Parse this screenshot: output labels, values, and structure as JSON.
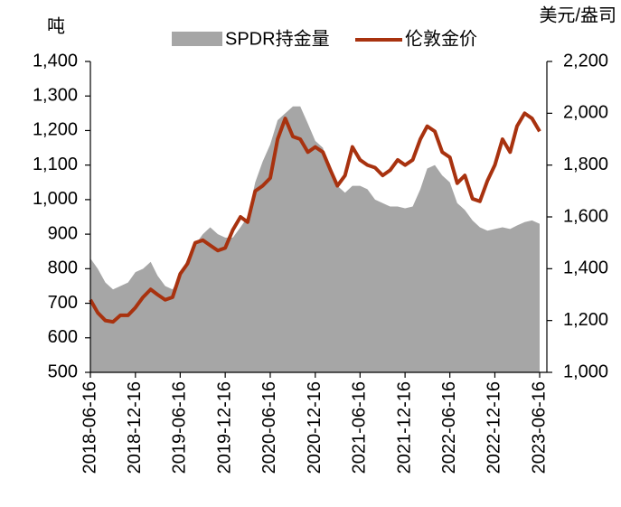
{
  "chart_data": {
    "type": "area_line",
    "y_label": "吨",
    "y2_label": "美元/盎司",
    "x": [
      "2018-06-16",
      "2018-07-16",
      "2018-08-16",
      "2018-09-16",
      "2018-10-16",
      "2018-11-16",
      "2018-12-16",
      "2019-01-16",
      "2019-02-16",
      "2019-03-16",
      "2019-04-16",
      "2019-05-16",
      "2019-06-16",
      "2019-07-16",
      "2019-08-16",
      "2019-09-16",
      "2019-10-16",
      "2019-11-16",
      "2019-12-16",
      "2020-01-16",
      "2020-02-16",
      "2020-03-16",
      "2020-04-16",
      "2020-05-16",
      "2020-06-16",
      "2020-07-16",
      "2020-08-16",
      "2020-09-16",
      "2020-10-16",
      "2020-11-16",
      "2020-12-16",
      "2021-01-16",
      "2021-02-16",
      "2021-03-16",
      "2021-04-16",
      "2021-05-16",
      "2021-06-16",
      "2021-07-16",
      "2021-08-16",
      "2021-09-16",
      "2021-10-16",
      "2021-11-16",
      "2021-12-16",
      "2022-01-16",
      "2022-02-16",
      "2022-03-16",
      "2022-04-16",
      "2022-05-16",
      "2022-06-16",
      "2022-07-16",
      "2022-08-16",
      "2022-09-16",
      "2022-10-16",
      "2022-11-16",
      "2022-12-16",
      "2023-01-16",
      "2023-02-16",
      "2023-03-16",
      "2023-04-16",
      "2023-05-16",
      "2023-06-16"
    ],
    "xlim": [
      "2018-06-16",
      "2023-06-16"
    ],
    "xticks": [
      "2018-06-16",
      "2018-12-16",
      "2019-06-16",
      "2019-12-16",
      "2020-06-16",
      "2020-12-16",
      "2021-06-16",
      "2021-12-16",
      "2022-06-16",
      "2022-12-16",
      "2023-06-16"
    ],
    "series": [
      {
        "name": "SPDR持金量",
        "kind": "area",
        "color": "#a6a6a6",
        "values": [
          830,
          800,
          760,
          740,
          750,
          760,
          790,
          800,
          820,
          780,
          750,
          740,
          780,
          830,
          870,
          900,
          920,
          900,
          890,
          890,
          920,
          950,
          1050,
          1110,
          1160,
          1230,
          1250,
          1270,
          1270,
          1220,
          1170,
          1150,
          1080,
          1040,
          1020,
          1040,
          1040,
          1030,
          1000,
          990,
          980,
          980,
          975,
          980,
          1030,
          1090,
          1100,
          1070,
          1050,
          990,
          970,
          940,
          920,
          910,
          915,
          920,
          915,
          925,
          935,
          940,
          930
        ]
      },
      {
        "name": "伦敦金价",
        "kind": "line",
        "axis": "y2",
        "color": "#a8320f",
        "values": [
          1280,
          1230,
          1200,
          1195,
          1220,
          1220,
          1250,
          1290,
          1320,
          1300,
          1280,
          1290,
          1380,
          1420,
          1500,
          1510,
          1490,
          1470,
          1480,
          1550,
          1600,
          1580,
          1700,
          1720,
          1750,
          1900,
          1980,
          1910,
          1900,
          1850,
          1870,
          1850,
          1780,
          1720,
          1760,
          1870,
          1820,
          1800,
          1790,
          1760,
          1780,
          1820,
          1800,
          1820,
          1900,
          1950,
          1930,
          1850,
          1830,
          1730,
          1760,
          1670,
          1660,
          1740,
          1800,
          1900,
          1850,
          1950,
          2000,
          1980,
          1930
        ]
      }
    ],
    "ylim": [
      500,
      1400
    ],
    "yticks": [
      500,
      600,
      700,
      800,
      900,
      {
        "value": 1000,
        "label": "1,000"
      },
      {
        "value": 1100,
        "label": "1,100"
      },
      {
        "value": 1200,
        "label": "1,200"
      },
      {
        "value": 1300,
        "label": "1,300"
      },
      {
        "value": 1400,
        "label": "1,400"
      }
    ],
    "y2lim": [
      1000,
      2200
    ],
    "y2ticks": [
      {
        "value": 1000,
        "label": "1,000"
      },
      {
        "value": 1200,
        "label": "1,200"
      },
      {
        "value": 1400,
        "label": "1,400"
      },
      {
        "value": 1600,
        "label": "1,600"
      },
      {
        "value": 1800,
        "label": "1,800"
      },
      {
        "value": 2000,
        "label": "2,000"
      },
      {
        "value": 2200,
        "label": "2,200"
      }
    ]
  }
}
